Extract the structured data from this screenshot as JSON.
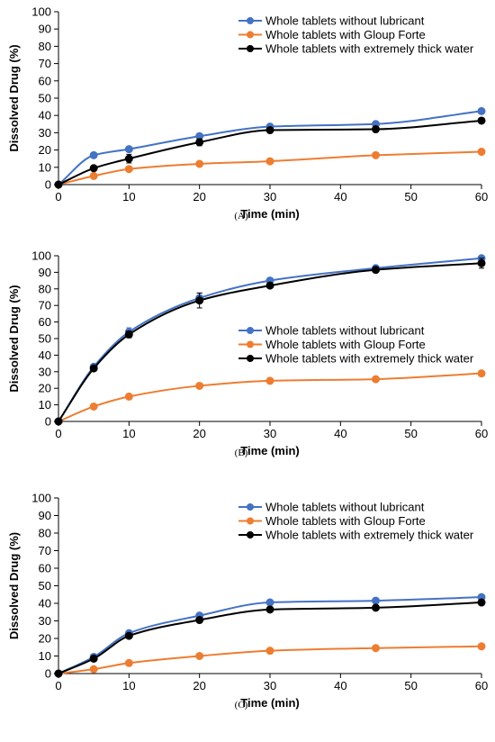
{
  "chart_data": [
    {
      "type": "line",
      "panel_label": "(A)",
      "xlabel": "Time (min)",
      "ylabel": "Dissolved Drug (%)",
      "xlim": [
        0,
        60
      ],
      "ylim": [
        0,
        100
      ],
      "xticks": [
        0,
        10,
        20,
        30,
        40,
        50,
        60
      ],
      "yticks": [
        0,
        10,
        20,
        30,
        40,
        50,
        60,
        70,
        80,
        90,
        100
      ],
      "legend_position": "top-right",
      "x": [
        0,
        5,
        10,
        20,
        30,
        45,
        60
      ],
      "series": [
        {
          "name": "Whole tablets without lubricant",
          "color": "#4472C4",
          "values": [
            0,
            17,
            20.5,
            28,
            33.5,
            35,
            42.5
          ]
        },
        {
          "name": "Whole tablets with Gloup Forte",
          "color": "#ED7D31",
          "values": [
            0,
            5,
            9,
            12,
            13.5,
            17,
            19
          ]
        },
        {
          "name": "Whole tablets with extremely thick water",
          "color": "#000000",
          "values": [
            0,
            9.5,
            15,
            24.5,
            31.5,
            32,
            37
          ],
          "error": [
            0,
            1,
            2.5,
            2,
            1.5,
            1,
            0.5
          ]
        }
      ]
    },
    {
      "type": "line",
      "panel_label": "(B)",
      "xlabel": "Time (min)",
      "ylabel": "Dissolved Drug (%)",
      "xlim": [
        0,
        60
      ],
      "ylim": [
        0,
        100
      ],
      "xticks": [
        0,
        10,
        20,
        30,
        40,
        50,
        60
      ],
      "yticks": [
        0,
        10,
        20,
        30,
        40,
        50,
        60,
        70,
        80,
        90,
        100
      ],
      "legend_position": "center-right",
      "x": [
        0,
        5,
        10,
        20,
        30,
        45,
        60
      ],
      "series": [
        {
          "name": "Whole tablets without lubricant",
          "color": "#4472C4",
          "values": [
            0,
            33,
            54,
            74.5,
            85,
            92.5,
            98.5
          ],
          "error": [
            0,
            1,
            2.5,
            3,
            1,
            1,
            1
          ]
        },
        {
          "name": "Whole tablets with Gloup Forte",
          "color": "#ED7D31",
          "values": [
            0,
            9,
            15,
            21.5,
            24.5,
            25.5,
            29
          ]
        },
        {
          "name": "Whole tablets with extremely thick water",
          "color": "#000000",
          "values": [
            0,
            32,
            52.5,
            73,
            82,
            91.5,
            95.5
          ],
          "error": [
            0,
            1.5,
            2,
            4.5,
            1,
            1.5,
            3
          ]
        }
      ]
    },
    {
      "type": "line",
      "panel_label": "(C)",
      "xlabel": "Time (min)",
      "ylabel": "Dissolved Drug (%)",
      "xlim": [
        0,
        60
      ],
      "ylim": [
        0,
        100
      ],
      "xticks": [
        0,
        10,
        20,
        30,
        40,
        50,
        60
      ],
      "yticks": [
        0,
        10,
        20,
        30,
        40,
        50,
        60,
        70,
        80,
        90,
        100
      ],
      "legend_position": "top-right",
      "x": [
        0,
        5,
        10,
        20,
        30,
        45,
        60
      ],
      "series": [
        {
          "name": "Whole tablets without lubricant",
          "color": "#4472C4",
          "values": [
            0,
            9.5,
            23,
            33,
            40.5,
            41.5,
            43.5
          ]
        },
        {
          "name": "Whole tablets with Gloup Forte",
          "color": "#ED7D31",
          "values": [
            0,
            2.5,
            6,
            10,
            13,
            14.5,
            15.5
          ]
        },
        {
          "name": "Whole tablets with extremely thick water",
          "color": "#000000",
          "values": [
            0,
            8.5,
            21.5,
            30.5,
            36.5,
            37.5,
            40.5
          ],
          "error": [
            0,
            0.5,
            1,
            1,
            1,
            1,
            1
          ]
        }
      ]
    }
  ]
}
